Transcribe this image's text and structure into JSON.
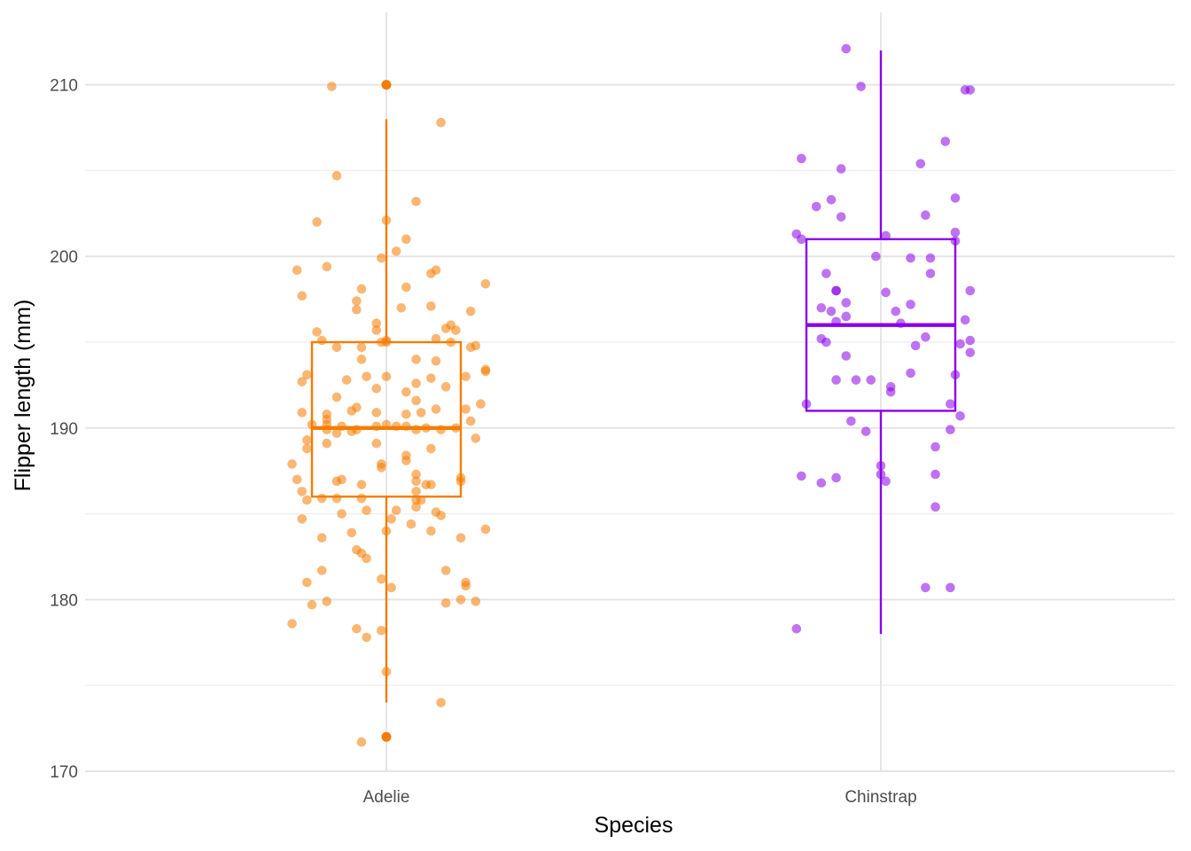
{
  "chart_data": {
    "type": "box",
    "xlabel": "Species",
    "ylabel": "Flipper length (mm)",
    "categories": [
      "Adelie",
      "Chinstrap"
    ],
    "ylim": [
      170,
      214
    ],
    "y_ticks": [
      170,
      180,
      190,
      200,
      210
    ],
    "y_minor_ticks": [
      175,
      185,
      195,
      205
    ],
    "grid": true,
    "legend": "none",
    "series": [
      {
        "color": "#f57c00",
        "box": {
          "whisker_low": 174,
          "q1": 186,
          "median": 190,
          "q3": 195,
          "whisker_high": 208
        },
        "outliers": [
          210,
          172
        ],
        "points": [
          [
            -0.11,
            209.9
          ],
          [
            -0.1,
            204.7
          ],
          [
            -0.14,
            202.0
          ],
          [
            0.0,
            202.1
          ],
          [
            0.06,
            203.2
          ],
          [
            0.11,
            207.8
          ],
          [
            0.04,
            201.0
          ],
          [
            -0.01,
            199.9
          ],
          [
            0.02,
            200.3
          ],
          [
            -0.18,
            199.2
          ],
          [
            -0.12,
            199.4
          ],
          [
            0.09,
            199.0
          ],
          [
            0.1,
            199.2
          ],
          [
            0.2,
            198.4
          ],
          [
            -0.17,
            197.7
          ],
          [
            -0.05,
            198.1
          ],
          [
            0.04,
            198.2
          ],
          [
            -0.06,
            197.4
          ],
          [
            -0.06,
            196.9
          ],
          [
            0.03,
            197.0
          ],
          [
            0.09,
            197.1
          ],
          [
            0.17,
            196.8
          ],
          [
            -0.14,
            195.6
          ],
          [
            -0.02,
            196.1
          ],
          [
            -0.02,
            195.7
          ],
          [
            0.12,
            195.8
          ],
          [
            0.13,
            196.0
          ],
          [
            0.14,
            195.7
          ],
          [
            -0.13,
            195.1
          ],
          [
            -0.05,
            194.7
          ],
          [
            -0.1,
            194.7
          ],
          [
            0.0,
            195.1
          ],
          [
            0.0,
            195.0
          ],
          [
            -0.01,
            195.0
          ],
          [
            0.1,
            195.2
          ],
          [
            0.13,
            195.0
          ],
          [
            0.17,
            194.7
          ],
          [
            0.18,
            194.8
          ],
          [
            -0.05,
            194.0
          ],
          [
            0.06,
            194.0
          ],
          [
            0.1,
            193.9
          ],
          [
            -0.16,
            193.1
          ],
          [
            0.16,
            193.0
          ],
          [
            0.2,
            193.4
          ],
          [
            0.2,
            193.3
          ],
          [
            -0.17,
            192.7
          ],
          [
            -0.08,
            192.8
          ],
          [
            -0.04,
            193.0
          ],
          [
            -0.02,
            192.3
          ],
          [
            0.0,
            193.0
          ],
          [
            0.06,
            192.6
          ],
          [
            0.09,
            192.9
          ],
          [
            0.12,
            192.4
          ],
          [
            -0.1,
            191.8
          ],
          [
            0.04,
            192.1
          ],
          [
            0.06,
            191.6
          ],
          [
            0.1,
            191.1
          ],
          [
            0.16,
            191.1
          ],
          [
            0.19,
            191.4
          ],
          [
            -0.17,
            190.9
          ],
          [
            -0.12,
            190.5
          ],
          [
            -0.12,
            190.8
          ],
          [
            -0.06,
            191.2
          ],
          [
            -0.07,
            191.0
          ],
          [
            -0.02,
            190.9
          ],
          [
            0.07,
            190.9
          ],
          [
            0.04,
            190.8
          ],
          [
            -0.15,
            190.2
          ],
          [
            -0.12,
            190.2
          ],
          [
            -0.12,
            189.9
          ],
          [
            -0.1,
            189.7
          ],
          [
            -0.09,
            190.1
          ],
          [
            -0.07,
            189.8
          ],
          [
            -0.06,
            189.9
          ],
          [
            -0.02,
            190.1
          ],
          [
            0.0,
            190.2
          ],
          [
            0.02,
            190.1
          ],
          [
            0.04,
            190.1
          ],
          [
            0.06,
            189.9
          ],
          [
            0.08,
            190.0
          ],
          [
            0.11,
            189.9
          ],
          [
            0.14,
            190.0
          ],
          [
            0.17,
            190.4
          ],
          [
            -0.16,
            189.3
          ],
          [
            -0.12,
            189.1
          ],
          [
            -0.02,
            189.1
          ],
          [
            0.04,
            188.4
          ],
          [
            0.09,
            188.8
          ],
          [
            0.18,
            189.4
          ],
          [
            -0.16,
            188.8
          ],
          [
            0.04,
            188.1
          ],
          [
            -0.19,
            187.9
          ],
          [
            -0.01,
            187.7
          ],
          [
            -0.01,
            187.9
          ],
          [
            -0.18,
            187.0
          ],
          [
            -0.1,
            186.9
          ],
          [
            -0.09,
            187.0
          ],
          [
            -0.05,
            186.7
          ],
          [
            0.06,
            187.3
          ],
          [
            0.06,
            186.9
          ],
          [
            0.08,
            186.7
          ],
          [
            0.09,
            186.7
          ],
          [
            0.15,
            187.1
          ],
          [
            0.15,
            186.9
          ],
          [
            0.06,
            186.3
          ],
          [
            -0.17,
            186.3
          ],
          [
            -0.16,
            185.8
          ],
          [
            -0.13,
            185.9
          ],
          [
            -0.1,
            185.9
          ],
          [
            -0.05,
            185.9
          ],
          [
            0.06,
            185.8
          ],
          [
            0.07,
            185.8
          ],
          [
            0.06,
            185.4
          ],
          [
            -0.09,
            185.0
          ],
          [
            -0.04,
            185.2
          ],
          [
            0.02,
            185.2
          ],
          [
            0.1,
            185.1
          ],
          [
            0.11,
            184.9
          ],
          [
            -0.17,
            184.7
          ],
          [
            0.01,
            184.7
          ],
          [
            0.05,
            184.4
          ],
          [
            0.09,
            184.0
          ],
          [
            -0.07,
            183.9
          ],
          [
            0.0,
            184.0
          ],
          [
            -0.13,
            183.6
          ],
          [
            0.15,
            183.6
          ],
          [
            0.2,
            184.1
          ],
          [
            -0.06,
            182.9
          ],
          [
            -0.05,
            182.7
          ],
          [
            -0.04,
            182.4
          ],
          [
            -0.13,
            181.7
          ],
          [
            0.12,
            181.7
          ],
          [
            -0.16,
            181.0
          ],
          [
            -0.01,
            181.2
          ],
          [
            0.01,
            180.7
          ],
          [
            0.16,
            181.0
          ],
          [
            0.16,
            180.8
          ],
          [
            -0.15,
            179.7
          ],
          [
            -0.12,
            179.9
          ],
          [
            0.12,
            179.8
          ],
          [
            0.15,
            180.0
          ],
          [
            0.18,
            179.9
          ],
          [
            -0.19,
            178.6
          ],
          [
            -0.06,
            178.3
          ],
          [
            -0.04,
            177.8
          ],
          [
            -0.01,
            178.2
          ],
          [
            0.0,
            175.8
          ],
          [
            0.11,
            174.0
          ],
          [
            -0.05,
            171.7
          ]
        ]
      },
      {
        "color": "#8b00e8",
        "box": {
          "whisker_low": 178,
          "q1": 191,
          "median": 196,
          "q3": 201,
          "whisker_high": 212
        },
        "outliers": [],
        "points": [
          [
            -0.07,
            212.1
          ],
          [
            -0.04,
            209.9
          ],
          [
            0.17,
            209.7
          ],
          [
            0.18,
            209.7
          ],
          [
            0.13,
            206.7
          ],
          [
            -0.16,
            205.7
          ],
          [
            0.08,
            205.4
          ],
          [
            -0.08,
            205.1
          ],
          [
            -0.13,
            202.9
          ],
          [
            -0.1,
            203.3
          ],
          [
            -0.08,
            202.3
          ],
          [
            0.15,
            203.4
          ],
          [
            0.09,
            202.4
          ],
          [
            -0.17,
            201.3
          ],
          [
            -0.16,
            201.0
          ],
          [
            0.01,
            201.2
          ],
          [
            0.15,
            201.4
          ],
          [
            0.15,
            200.9
          ],
          [
            -0.01,
            200.0
          ],
          [
            0.06,
            199.9
          ],
          [
            0.1,
            199.9
          ],
          [
            -0.11,
            199.0
          ],
          [
            0.1,
            199.0
          ],
          [
            -0.09,
            198.0
          ],
          [
            -0.09,
            198.0
          ],
          [
            0.01,
            197.9
          ],
          [
            0.18,
            198.0
          ],
          [
            -0.12,
            197.0
          ],
          [
            -0.1,
            196.8
          ],
          [
            -0.07,
            197.3
          ],
          [
            0.06,
            197.2
          ],
          [
            0.03,
            196.8
          ],
          [
            -0.09,
            196.2
          ],
          [
            -0.07,
            196.5
          ],
          [
            0.04,
            196.1
          ],
          [
            0.17,
            196.3
          ],
          [
            -0.12,
            195.2
          ],
          [
            -0.11,
            195.0
          ],
          [
            0.07,
            194.8
          ],
          [
            0.09,
            195.3
          ],
          [
            0.16,
            194.9
          ],
          [
            0.18,
            195.1
          ],
          [
            0.18,
            194.4
          ],
          [
            -0.07,
            194.2
          ],
          [
            -0.09,
            192.8
          ],
          [
            -0.05,
            192.8
          ],
          [
            -0.02,
            192.8
          ],
          [
            0.02,
            192.4
          ],
          [
            0.02,
            192.1
          ],
          [
            0.06,
            193.2
          ],
          [
            0.15,
            193.1
          ],
          [
            -0.15,
            191.4
          ],
          [
            0.14,
            191.4
          ],
          [
            0.16,
            190.7
          ],
          [
            -0.06,
            190.4
          ],
          [
            -0.03,
            189.8
          ],
          [
            0.14,
            189.9
          ],
          [
            0.11,
            188.9
          ],
          [
            0.0,
            187.8
          ],
          [
            0.0,
            187.3
          ],
          [
            -0.16,
            187.2
          ],
          [
            -0.12,
            186.8
          ],
          [
            -0.09,
            187.1
          ],
          [
            0.01,
            186.9
          ],
          [
            0.11,
            187.3
          ],
          [
            0.11,
            185.4
          ],
          [
            0.09,
            180.7
          ],
          [
            0.14,
            180.7
          ],
          [
            -0.17,
            178.3
          ]
        ]
      }
    ]
  }
}
